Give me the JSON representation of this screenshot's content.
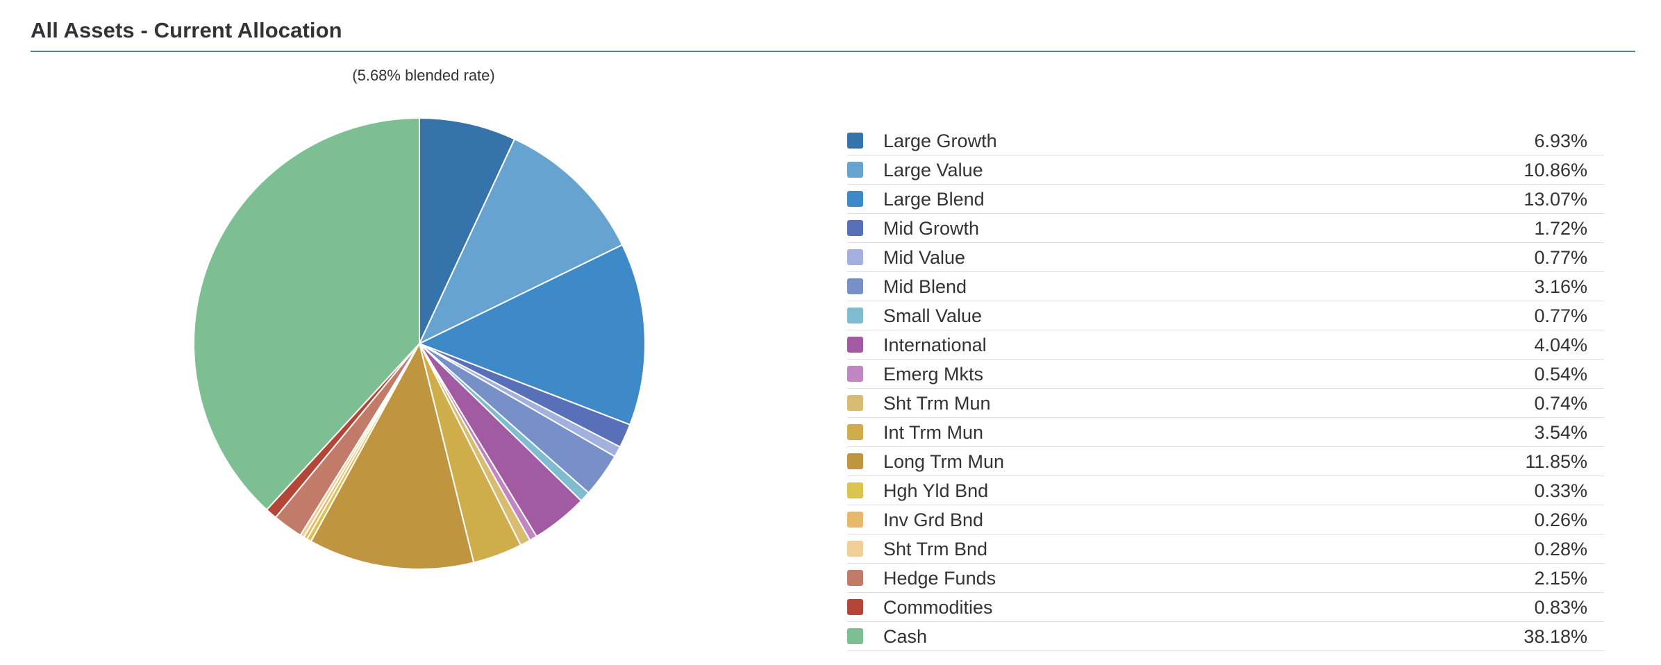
{
  "header": {
    "title": "All Assets - Current Allocation"
  },
  "chart_data": {
    "type": "pie",
    "title": "All Assets - Current Allocation",
    "subtitle": "(5.68% blended rate)",
    "legend_position": "right",
    "slices": [
      {
        "label": "Large Growth",
        "value": 6.93,
        "value_label": "6.93%",
        "color": "#3673aa"
      },
      {
        "label": "Large Value",
        "value": 10.86,
        "value_label": "10.86%",
        "color": "#66a3d0"
      },
      {
        "label": "Large Blend",
        "value": 13.07,
        "value_label": "13.07%",
        "color": "#3e89c8"
      },
      {
        "label": "Mid Growth",
        "value": 1.72,
        "value_label": "1.72%",
        "color": "#5770b8"
      },
      {
        "label": "Mid Value",
        "value": 0.77,
        "value_label": "0.77%",
        "color": "#a2b0de"
      },
      {
        "label": "Mid Blend",
        "value": 3.16,
        "value_label": "3.16%",
        "color": "#7890c8"
      },
      {
        "label": "Small Value",
        "value": 0.77,
        "value_label": "0.77%",
        "color": "#80bcd0"
      },
      {
        "label": "International",
        "value": 4.04,
        "value_label": "4.04%",
        "color": "#a25aa3"
      },
      {
        "label": "Emerg Mkts",
        "value": 0.54,
        "value_label": "0.54%",
        "color": "#c086c1"
      },
      {
        "label": "Sht Trm Mun",
        "value": 0.74,
        "value_label": "0.74%",
        "color": "#d8bc72"
      },
      {
        "label": "Int Trm Mun",
        "value": 3.54,
        "value_label": "3.54%",
        "color": "#cfad4b"
      },
      {
        "label": "Long Trm Mun",
        "value": 11.85,
        "value_label": "11.85%",
        "color": "#bf963f"
      },
      {
        "label": "Hgh Yld Bnd",
        "value": 0.33,
        "value_label": "0.33%",
        "color": "#dcc34c"
      },
      {
        "label": "Inv Grd Bnd",
        "value": 0.26,
        "value_label": "0.26%",
        "color": "#e8b86a"
      },
      {
        "label": "Sht Trm Bnd",
        "value": 0.28,
        "value_label": "0.28%",
        "color": "#efcf96"
      },
      {
        "label": "Hedge Funds",
        "value": 2.15,
        "value_label": "2.15%",
        "color": "#c27b68"
      },
      {
        "label": "Commodities",
        "value": 0.83,
        "value_label": "0.83%",
        "color": "#b44638"
      },
      {
        "label": "Cash",
        "value": 38.18,
        "value_label": "38.18%",
        "color": "#7dbf93"
      }
    ]
  }
}
